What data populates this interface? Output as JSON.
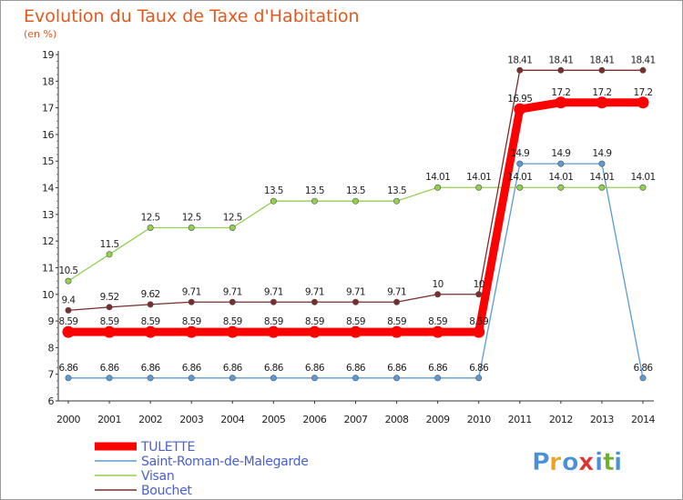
{
  "chart_data": {
    "type": "line",
    "title": "Evolution du Taux de Taxe d'Habitation",
    "subtitle": "(en %)",
    "xlabel": "",
    "ylabel": "",
    "ylim": [
      6,
      19
    ],
    "yticks": [
      6,
      7,
      8,
      9,
      10,
      11,
      12,
      13,
      14,
      15,
      16,
      17,
      18,
      19
    ],
    "x": [
      "2000",
      "2001",
      "2002",
      "2003",
      "2004",
      "2005",
      "2006",
      "2007",
      "2008",
      "2009",
      "2010",
      "2011",
      "2012",
      "2013",
      "2014"
    ],
    "grid": false,
    "legend_position": "bottom-left",
    "series": [
      {
        "name": "TULETTE",
        "color": "#ff0000",
        "values": [
          8.59,
          8.59,
          8.59,
          8.59,
          8.59,
          8.59,
          8.59,
          8.59,
          8.59,
          8.59,
          8.59,
          16.95,
          17.2,
          17.2,
          17.2
        ],
        "labels": [
          "8.59",
          "8.59",
          "8.59",
          "8.59",
          "8.59",
          "8.59",
          "8.59",
          "8.59",
          "8.59",
          "8.59",
          "8.59",
          "16.95",
          "17.2",
          "17.2",
          "17.2"
        ]
      },
      {
        "name": "Saint-Roman-de-Malegarde",
        "color": "#5b9bd5",
        "values": [
          6.86,
          6.86,
          6.86,
          6.86,
          6.86,
          6.86,
          6.86,
          6.86,
          6.86,
          6.86,
          6.86,
          14.9,
          14.9,
          14.9,
          6.86
        ],
        "labels": [
          "6.86",
          "6.86",
          "6.86",
          "6.86",
          "6.86",
          "6.86",
          "6.86",
          "6.86",
          "6.86",
          "6.86",
          "6.86",
          "14.9",
          "14.9",
          "14.9",
          "6.86"
        ]
      },
      {
        "name": "Visan",
        "color": "#92d050",
        "values": [
          10.5,
          11.5,
          12.5,
          12.5,
          12.5,
          13.5,
          13.5,
          13.5,
          13.5,
          14.01,
          14.01,
          14.01,
          14.01,
          14.01,
          14.01
        ],
        "labels": [
          "10.5",
          "11.5",
          "12.5",
          "12.5",
          "12.5",
          "13.5",
          "13.5",
          "13.5",
          "13.5",
          "14.01",
          "14.01",
          "14.01",
          "14.01",
          "14.01",
          "14.01"
        ]
      },
      {
        "name": "Bouchet",
        "color": "#7b2c2c",
        "values": [
          9.4,
          9.52,
          9.62,
          9.71,
          9.71,
          9.71,
          9.71,
          9.71,
          9.71,
          10,
          10,
          18.41,
          18.41,
          18.41,
          18.41
        ],
        "labels": [
          "9.4",
          "9.52",
          "9.62",
          "9.71",
          "9.71",
          "9.71",
          "9.71",
          "9.71",
          "9.71",
          "10",
          "10",
          "18.41",
          "18.41",
          "18.41",
          "18.41"
        ]
      }
    ]
  },
  "logo": {
    "letters": [
      "P",
      "r",
      "o",
      "x",
      "i",
      "t",
      "i"
    ],
    "colors": [
      "#4a90d9",
      "#f0a020",
      "#4a90d9",
      "#e03030",
      "#4a90d9",
      "#70b030",
      "#4a90d9"
    ]
  }
}
